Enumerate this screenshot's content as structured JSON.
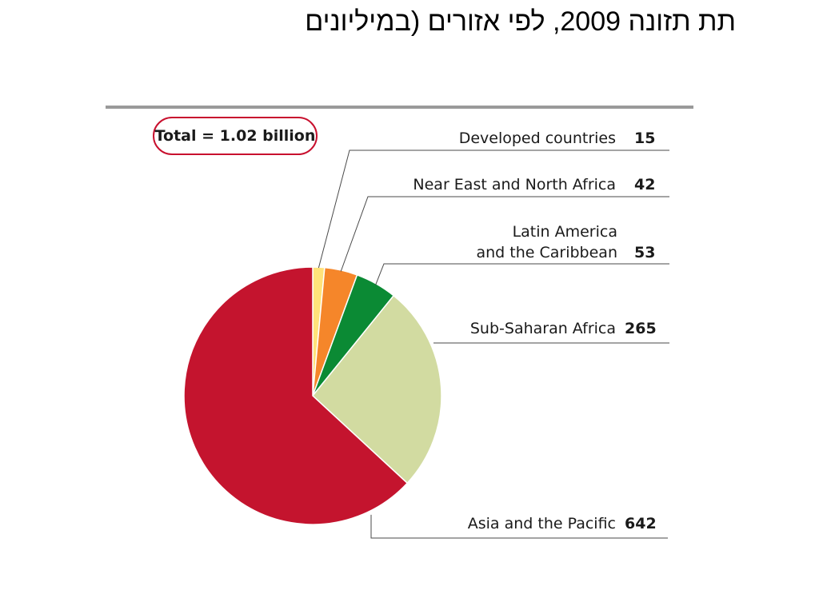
{
  "page_title": "תת תזונה 2009, לפי אזורים (במיליונים",
  "total_label": "Total = 1.02 billion",
  "chart_data": {
    "type": "pie",
    "title": "",
    "start_angle_deg": 0,
    "slices": [
      {
        "label": "Developed countries",
        "value": 15,
        "color": "#ffe27a"
      },
      {
        "label": "Near East and North Africa",
        "value": 42,
        "color": "#f5862a"
      },
      {
        "label": "Latin America and the Caribbean",
        "label_lines": [
          "Latin America",
          "and the Caribbean"
        ],
        "value": 53,
        "color": "#0b8a34"
      },
      {
        "label": "Sub-Saharan Africa",
        "value": 265,
        "color": "#d2dba1"
      },
      {
        "label": "Asia and the Pacific",
        "value": 642,
        "color": "#c4142e"
      }
    ],
    "value_labels": [
      "15",
      "42",
      "53",
      "265",
      "642"
    ]
  }
}
